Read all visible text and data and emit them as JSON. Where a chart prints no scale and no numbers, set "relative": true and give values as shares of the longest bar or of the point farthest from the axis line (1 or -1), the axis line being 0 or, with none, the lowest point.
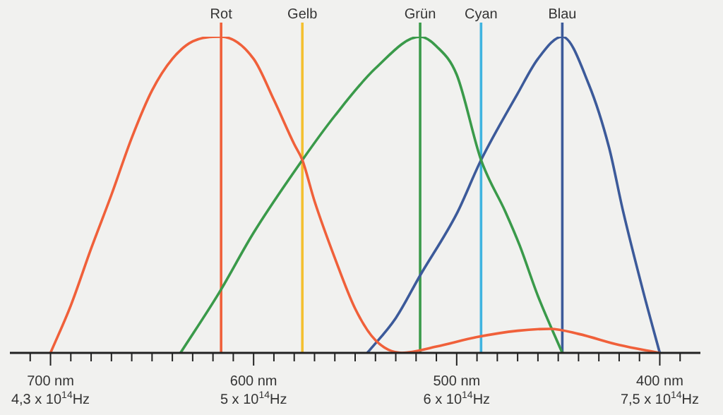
{
  "chart_data": {
    "type": "line",
    "relative": true,
    "marker": "none",
    "line_style": "solid",
    "legend": false,
    "tick_labels": "x",
    "xlim": [
      720,
      380
    ],
    "xticks": [
      {
        "value": 710,
        "label": null
      },
      {
        "value": 700,
        "label": "700 nm"
      },
      {
        "value": 690,
        "label": null
      },
      {
        "value": 680,
        "label": null
      },
      {
        "value": 670,
        "label": null
      },
      {
        "value": 660,
        "label": null
      },
      {
        "value": 650,
        "label": null
      },
      {
        "value": 640,
        "label": null
      },
      {
        "value": 630,
        "label": null
      },
      {
        "value": 620,
        "label": null
      },
      {
        "value": 610,
        "label": null
      },
      {
        "value": 600,
        "label": "600 nm"
      },
      {
        "value": 590,
        "label": null
      },
      {
        "value": 580,
        "label": null
      },
      {
        "value": 570,
        "label": null
      },
      {
        "value": 560,
        "label": null
      },
      {
        "value": 550,
        "label": null
      },
      {
        "value": 540,
        "label": null
      },
      {
        "value": 530,
        "label": null
      },
      {
        "value": 520,
        "label": null
      },
      {
        "value": 510,
        "label": null
      },
      {
        "value": 500,
        "label": "500 nm"
      },
      {
        "value": 490,
        "label": null
      },
      {
        "value": 480,
        "label": null
      },
      {
        "value": 470,
        "label": null
      },
      {
        "value": 460,
        "label": null
      },
      {
        "value": 450,
        "label": null
      },
      {
        "value": 440,
        "label": null
      },
      {
        "value": 430,
        "label": null
      },
      {
        "value": 420,
        "label": null
      },
      {
        "value": 410,
        "label": null
      },
      {
        "value": 400,
        "label": "400 nm"
      },
      {
        "value": 390,
        "label": null
      }
    ],
    "series": [
      {
        "color": "#f0603a",
        "x": [
          700,
          690,
          680,
          670,
          660,
          650,
          640,
          630,
          616,
          600,
          590,
          580,
          576,
          570,
          560,
          550,
          540,
          527,
          510,
          490,
          470,
          454,
          440,
          420,
          400
        ],
        "values": [
          0,
          0.15,
          0.33,
          0.5,
          0.68,
          0.83,
          0.93,
          0.985,
          1,
          0.93,
          0.8,
          0.66,
          0.61,
          0.48,
          0.3,
          0.14,
          0.04,
          0,
          0.02,
          0.05,
          0.07,
          0.076,
          0.06,
          0.025,
          0
        ]
      },
      {
        "color": "#3a9a4a",
        "x": [
          636,
          617,
          600,
          576,
          560,
          540,
          518,
          510,
          500,
          488,
          476,
          469,
          460,
          448
        ],
        "values": [
          0,
          0.19,
          0.38,
          0.61,
          0.75,
          0.9,
          1,
          0.97,
          0.88,
          0.61,
          0.446,
          0.34,
          0.18,
          0
        ]
      },
      {
        "color": "#3c5a9a",
        "x": [
          544,
          530,
          518,
          500,
          488,
          470,
          460,
          448,
          435,
          425,
          418,
          408,
          400
        ],
        "values": [
          0,
          0.11,
          0.245,
          0.44,
          0.61,
          0.82,
          0.93,
          1,
          0.85,
          0.65,
          0.446,
          0.19,
          0
        ]
      }
    ],
    "annotations": [
      "4,3 x 10$^{14}$Hz",
      "5 x 10$^{14}$Hz",
      "6 x 10$^{14}$Hz",
      "7,5 x 10$^{14}$Hz"
    ],
    "ref_lines": [
      {
        "axis": "x",
        "value": 616,
        "label": "Rot",
        "color": "#f0603a"
      },
      {
        "axis": "x",
        "value": 576,
        "label": "Gelb",
        "color": "#f4c030"
      },
      {
        "axis": "x",
        "value": 518,
        "label": "Grün",
        "color": "#3a9a4a"
      },
      {
        "axis": "x",
        "value": 488,
        "label": "Cyan",
        "color": "#40b4e0"
      },
      {
        "axis": "x",
        "value": 448,
        "label": "Blau",
        "color": "#3c5a9a"
      }
    ]
  }
}
